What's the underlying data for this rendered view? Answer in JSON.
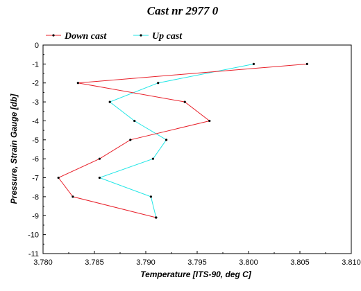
{
  "chart_data": {
    "type": "line",
    "title": "Cast nr 2977 0",
    "xlabel": "Temperature [ITS-90, deg C]",
    "ylabel": "Pressure, Strain Gauge [db]",
    "xlim": [
      3.78,
      3.81
    ],
    "ylim": [
      -11,
      0
    ],
    "x_ticks": [
      "3.780",
      "3.785",
      "3.790",
      "3.795",
      "3.800",
      "3.805",
      "3.810"
    ],
    "y_ticks": [
      "0",
      "-1",
      "-2",
      "-3",
      "-4",
      "-5",
      "-6",
      "-7",
      "-8",
      "-9",
      "-10",
      "-11"
    ],
    "x_tick_values": [
      3.78,
      3.785,
      3.79,
      3.795,
      3.8,
      3.805,
      3.81
    ],
    "y_tick_values": [
      0,
      -1,
      -2,
      -3,
      -4,
      -5,
      -6,
      -7,
      -8,
      -9,
      -10,
      -11
    ],
    "grid": false,
    "legend_position": "top-left",
    "series": [
      {
        "name": "Down cast",
        "color": "#e8202a",
        "points": [
          [
            3.8057,
            -1
          ],
          [
            3.7834,
            -2
          ],
          [
            3.7938,
            -3
          ],
          [
            3.7962,
            -4
          ],
          [
            3.7885,
            -5
          ],
          [
            3.7855,
            -6
          ],
          [
            3.7815,
            -7
          ],
          [
            3.7829,
            -8
          ],
          [
            3.791,
            -9.1
          ]
        ]
      },
      {
        "name": "Up cast",
        "color": "#22e6e6",
        "points": [
          [
            3.8005,
            -1
          ],
          [
            3.7912,
            -2
          ],
          [
            3.7865,
            -3
          ],
          [
            3.7889,
            -4
          ],
          [
            3.792,
            -5
          ],
          [
            3.7907,
            -6
          ],
          [
            3.7855,
            -7
          ],
          [
            3.7905,
            -8
          ],
          [
            3.791,
            -9.1
          ]
        ]
      }
    ]
  }
}
